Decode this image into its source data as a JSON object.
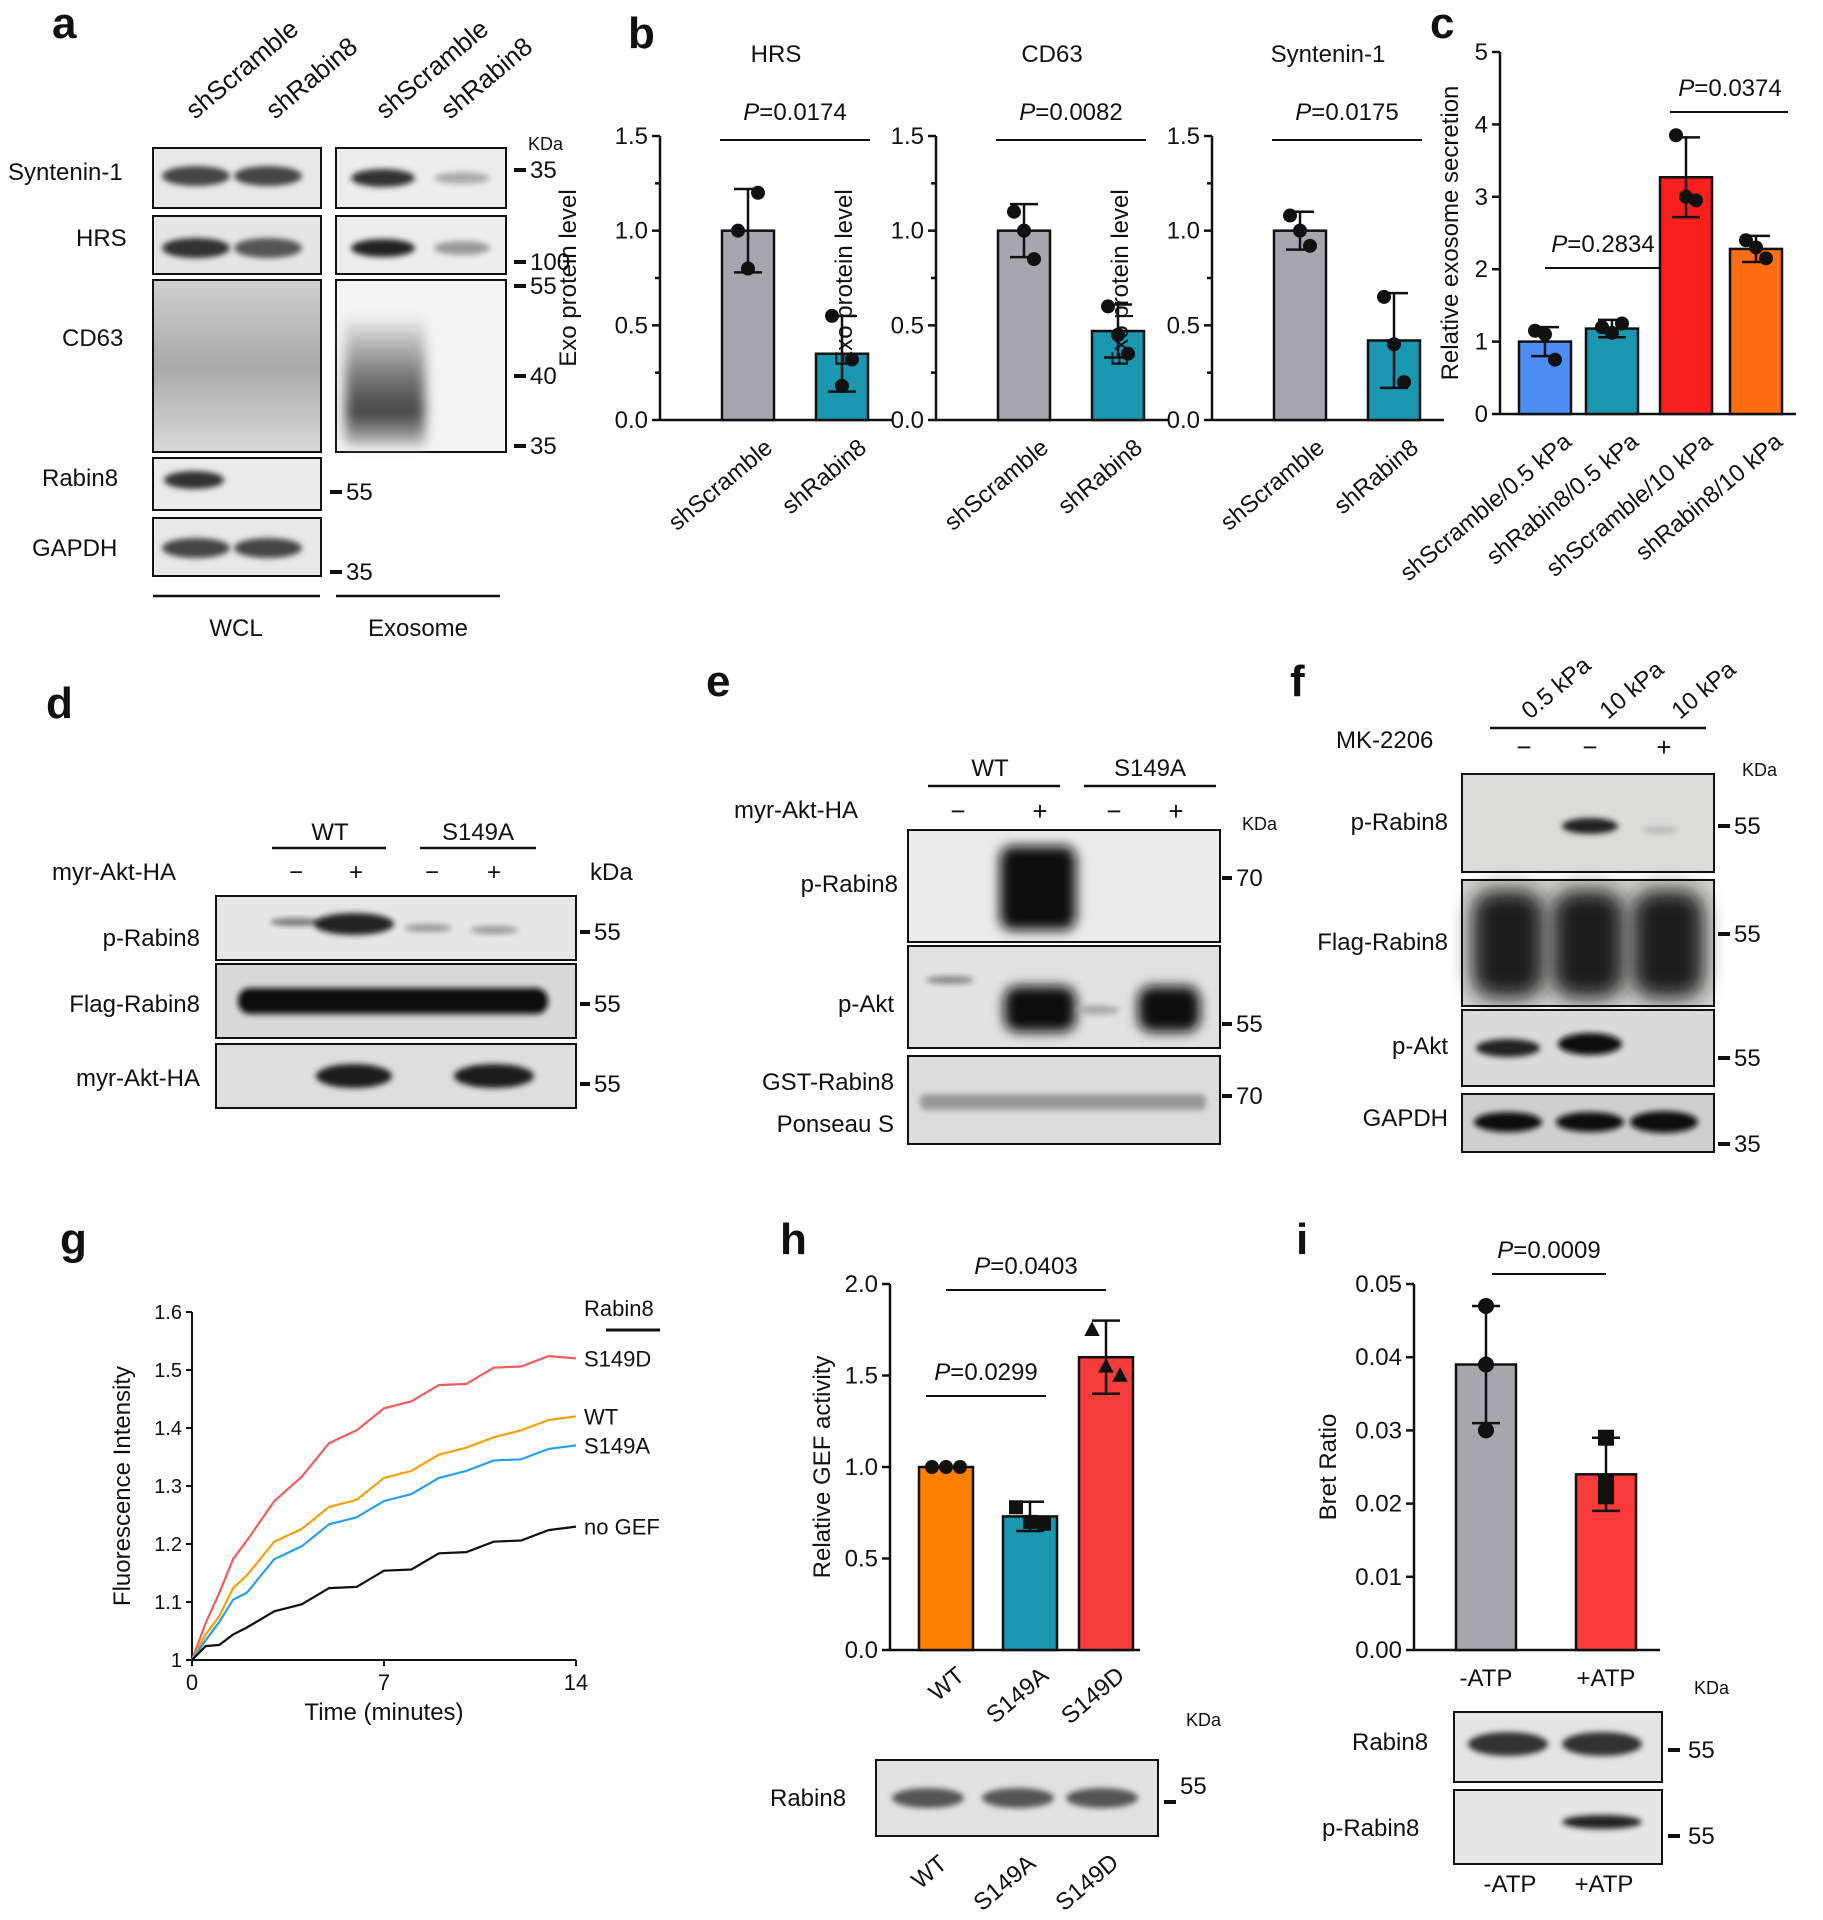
{
  "panel_labels": {
    "a": "a",
    "b": "b",
    "c": "c",
    "d": "d",
    "e": "e",
    "f": "f",
    "g": "g",
    "h": "h",
    "i": "i"
  },
  "colors": {
    "gray": "#a7a6ad",
    "teal": "#1a96ae",
    "blue": "#4d8ef5",
    "red": "#f81f1f",
    "orange": "#fe6d12",
    "orange_h": "#ff8000",
    "red_h": "#f53c3c",
    "red_i": "#f83a3a",
    "line_s149d": "#f25c5c",
    "line_wt": "#f5a10a",
    "line_s149a": "#2ba0ea",
    "line_nogef": "#111111"
  },
  "panel_a": {
    "lanes": [
      "shScramble",
      "shRabin8",
      "shScramble",
      "shRabin8"
    ],
    "kda": "KDa",
    "rows": [
      "Syntenin-1",
      "HRS",
      "CD63",
      "Rabin8",
      "GAPDH"
    ],
    "markers": [
      "35",
      "100",
      "55",
      "40",
      "35",
      "55",
      "35"
    ],
    "groups": [
      "WCL",
      "Exosome"
    ]
  },
  "panel_d": {
    "groups": [
      "WT",
      "S149A"
    ],
    "treat_label": "myr-Akt-HA",
    "treat": [
      "−",
      "+",
      "−",
      "+"
    ],
    "unit": "kDa",
    "rows": [
      "p-Rabin8",
      "Flag-Rabin8",
      "myr-Akt-HA"
    ],
    "markers": [
      "55",
      "55",
      "55"
    ]
  },
  "panel_e": {
    "groups": [
      "WT",
      "S149A"
    ],
    "treat_label": "myr-Akt-HA",
    "treat": [
      "−",
      "+",
      "−",
      "+"
    ],
    "unit": "KDa",
    "rows": [
      "p-Rabin8",
      "p-Akt",
      "GST-Rabin8",
      "Ponseau S"
    ],
    "markers": [
      "70",
      "55",
      "70"
    ]
  },
  "panel_f": {
    "lanes": [
      "0.5 kPa",
      "10 kPa",
      "10 kPa"
    ],
    "treat_label": "MK-2206",
    "treat": [
      "−",
      "−",
      "+"
    ],
    "unit": "KDa",
    "rows": [
      "p-Rabin8",
      "Flag-Rabin8",
      "p-Akt",
      "GAPDH"
    ],
    "markers": [
      "55",
      "55",
      "55",
      "35"
    ]
  },
  "panel_h_blot": {
    "unit": "KDa",
    "row": "Rabin8",
    "marker": "55",
    "lanes": [
      "WT",
      "S149A",
      "S149D"
    ]
  },
  "panel_i_blot": {
    "unit": "KDa",
    "rows": [
      "Rabin8",
      "p-Rabin8"
    ],
    "markers": [
      "55",
      "55"
    ],
    "lanes": [
      "-ATP",
      "+ATP"
    ]
  },
  "chart_data": [
    {
      "id": "b1",
      "type": "bar",
      "title": "HRS",
      "ylabel": "Exo protein level",
      "categories": [
        "shScramble",
        "shRabin8"
      ],
      "values": [
        1.0,
        0.35
      ],
      "error": [
        0.22,
        0.2
      ],
      "points": [
        [
          1.0,
          1.2,
          0.8
        ],
        [
          0.55,
          0.32,
          0.18
        ]
      ],
      "ylim": [
        0,
        1.5
      ],
      "yticks": [
        "0.0",
        "0.5",
        "1.0",
        "1.5"
      ],
      "pvalue": {
        "label": "P",
        "value": "=0.0174"
      }
    },
    {
      "id": "b2",
      "type": "bar",
      "title": "CD63",
      "ylabel": "Exo protein level",
      "categories": [
        "shScramble",
        "shRabin8"
      ],
      "values": [
        1.0,
        0.47
      ],
      "error": [
        0.14,
        0.14
      ],
      "points": [
        [
          1.1,
          0.85,
          1.0
        ],
        [
          0.6,
          0.35,
          0.45
        ]
      ],
      "ylim": [
        0,
        1.5
      ],
      "yticks": [
        "0.0",
        "0.5",
        "1.0",
        "1.5"
      ],
      "pvalue": {
        "label": "P",
        "value": "=0.0082"
      }
    },
    {
      "id": "b3",
      "type": "bar",
      "title": "Syntenin-1",
      "ylabel": "Exo protein level",
      "categories": [
        "shScramble",
        "shRabin8"
      ],
      "values": [
        1.0,
        0.42
      ],
      "error": [
        0.1,
        0.25
      ],
      "points": [
        [
          1.08,
          0.92,
          1.0
        ],
        [
          0.65,
          0.2,
          0.4
        ]
      ],
      "ylim": [
        0,
        1.5
      ],
      "yticks": [
        "0.0",
        "0.5",
        "1.0",
        "1.5"
      ],
      "pvalue": {
        "label": "P",
        "value": "=0.0175"
      }
    },
    {
      "id": "c",
      "type": "bar",
      "title": "",
      "ylabel": "Relative exosome secretion",
      "categories": [
        "shScramble/0.5 kPa",
        "shRabin8/0.5 kPa",
        "shScramble/10 kPa",
        "shRabin8/10 kPa"
      ],
      "values": [
        1.0,
        1.18,
        3.27,
        2.28
      ],
      "error": [
        0.2,
        0.12,
        0.55,
        0.18
      ],
      "points": [
        [
          1.15,
          0.75,
          1.1
        ],
        [
          1.2,
          1.25,
          1.12
        ],
        [
          3.85,
          2.95,
          3.0
        ],
        [
          2.4,
          2.15,
          2.3
        ]
      ],
      "ylim": [
        0,
        5
      ],
      "yticks": [
        "0",
        "1",
        "2",
        "3",
        "4",
        "5"
      ],
      "pvalues": [
        {
          "label": "P",
          "value": "=0.2834"
        },
        {
          "label": "P",
          "value": "=0.0374"
        }
      ]
    },
    {
      "id": "g",
      "type": "line",
      "title": "",
      "xlabel": "Time (minutes)",
      "ylabel": "Fluorescence Intensity",
      "xlim": [
        0,
        14
      ],
      "ylim": [
        1,
        1.6
      ],
      "xticks": [
        "0",
        "7",
        "14"
      ],
      "yticks": [
        "1",
        "1.1",
        "1.2",
        "1.3",
        "1.4",
        "1.5",
        "1.6"
      ],
      "legend_title": "Rabin8",
      "series": [
        {
          "name": "S149D",
          "x": [
            0,
            0.5,
            1,
            1.5,
            2,
            3,
            4,
            5,
            6,
            7,
            8,
            9,
            10,
            11,
            12,
            13,
            14
          ],
          "y": [
            1.0,
            1.06,
            1.12,
            1.17,
            1.21,
            1.27,
            1.32,
            1.37,
            1.4,
            1.43,
            1.45,
            1.47,
            1.48,
            1.5,
            1.51,
            1.52,
            1.52
          ]
        },
        {
          "name": "WT",
          "x": [
            0,
            0.5,
            1,
            1.5,
            2,
            3,
            4,
            5,
            6,
            7,
            8,
            9,
            10,
            11,
            12,
            13,
            14
          ],
          "y": [
            1.0,
            1.04,
            1.08,
            1.12,
            1.15,
            1.2,
            1.23,
            1.26,
            1.28,
            1.31,
            1.33,
            1.35,
            1.37,
            1.38,
            1.4,
            1.41,
            1.42
          ]
        },
        {
          "name": "S149A",
          "x": [
            0,
            0.5,
            1,
            1.5,
            2,
            3,
            4,
            5,
            6,
            7,
            8,
            9,
            10,
            11,
            12,
            13,
            14
          ],
          "y": [
            1.0,
            1.03,
            1.07,
            1.1,
            1.12,
            1.17,
            1.2,
            1.23,
            1.25,
            1.27,
            1.29,
            1.31,
            1.33,
            1.34,
            1.35,
            1.36,
            1.37
          ]
        },
        {
          "name": "no GEF",
          "x": [
            0,
            0.5,
            1,
            1.5,
            2,
            3,
            4,
            5,
            6,
            7,
            8,
            9,
            10,
            11,
            12,
            13,
            14
          ],
          "y": [
            1.0,
            1.02,
            1.03,
            1.04,
            1.06,
            1.08,
            1.1,
            1.12,
            1.13,
            1.15,
            1.16,
            1.18,
            1.19,
            1.2,
            1.21,
            1.22,
            1.23
          ]
        }
      ]
    },
    {
      "id": "h",
      "type": "bar",
      "title": "",
      "ylabel": "Relative GEF activity",
      "categories": [
        "WT",
        "S149A",
        "S149D"
      ],
      "values": [
        1.0,
        0.73,
        1.6
      ],
      "error": [
        0,
        0.08,
        0.2
      ],
      "points": [
        [
          1.0,
          1.0,
          1.0
        ],
        [
          0.78,
          0.69,
          0.7
        ],
        [
          1.75,
          1.5,
          1.55
        ]
      ],
      "ylim": [
        0,
        2.0
      ],
      "yticks": [
        "0.0",
        "0.5",
        "1.0",
        "1.5",
        "2.0"
      ],
      "pvalues": [
        {
          "label": "P",
          "value": "=0.0299"
        },
        {
          "label": "P",
          "value": "=0.0403"
        }
      ]
    },
    {
      "id": "i",
      "type": "bar",
      "title": "",
      "ylabel": "Bret Ratio",
      "categories": [
        "-ATP",
        "+ATP"
      ],
      "values": [
        0.039,
        0.024
      ],
      "error": [
        0.008,
        0.005
      ],
      "points": [
        [
          0.047,
          0.03,
          0.039
        ],
        [
          0.029,
          0.021,
          0.023
        ]
      ],
      "ylim": [
        0,
        0.05
      ],
      "yticks": [
        "0.00",
        "0.01",
        "0.02",
        "0.03",
        "0.04",
        "0.05"
      ],
      "pvalue": {
        "label": "P",
        "value": "=0.0009"
      }
    }
  ]
}
